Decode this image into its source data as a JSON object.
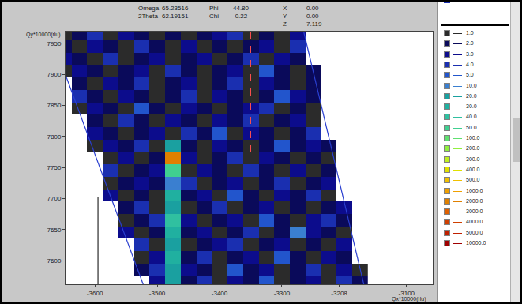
{
  "chart_data": {
    "type": "heatmap",
    "x_label": "Qx*10000(rlu)",
    "y_label": "Qy*10000(rlu)",
    "xlim": [
      -3647,
      -3058
    ],
    "ylim": [
      7562,
      7969
    ],
    "xticks": [
      -3600,
      -3500,
      -3400,
      -3300,
      -3208,
      -3100
    ],
    "yticks": [
      7600,
      7650,
      7700,
      7750,
      7800,
      7850,
      7900,
      7950
    ],
    "grid": false,
    "x": [
      -3650,
      -3625,
      -3600,
      -3575,
      -3550,
      -3525,
      -3500,
      -3475,
      -3450,
      -3425,
      -3400,
      -3375,
      -3350,
      -3325,
      -3300,
      -3275,
      -3250,
      -3225,
      -3200,
      -3175
    ],
    "y": [
      7565,
      7585,
      7605,
      7625,
      7645,
      7665,
      7685,
      7705,
      7725,
      7745,
      7765,
      7785,
      7805,
      7825,
      7845,
      7865,
      7885,
      7905,
      7925,
      7945,
      7965
    ],
    "z": [
      [
        null,
        null,
        null,
        null,
        null,
        null,
        3,
        20,
        2,
        4,
        1,
        3,
        2,
        5,
        1,
        2,
        3,
        1,
        4,
        2
      ],
      [
        null,
        null,
        null,
        null,
        null,
        2,
        4,
        20,
        3,
        2,
        1,
        5,
        2,
        3,
        1,
        2,
        4,
        1,
        3,
        1
      ],
      [
        null,
        null,
        null,
        null,
        null,
        1,
        3,
        30,
        2,
        4,
        1,
        2,
        3,
        1,
        5,
        2,
        1,
        3,
        2,
        null
      ],
      [
        null,
        null,
        null,
        null,
        null,
        4,
        1,
        20,
        1,
        2,
        3,
        4,
        1,
        2,
        3,
        1,
        2,
        1,
        3,
        null
      ],
      [
        null,
        null,
        null,
        null,
        3,
        1,
        2,
        30,
        2,
        3,
        1,
        2,
        4,
        1,
        2,
        10,
        3,
        2,
        1,
        null
      ],
      [
        null,
        null,
        null,
        null,
        1,
        2,
        4,
        40,
        3,
        1,
        2,
        3,
        1,
        5,
        2,
        1,
        3,
        4,
        2,
        null
      ],
      [
        null,
        null,
        null,
        null,
        2,
        4,
        1,
        20,
        1,
        2,
        4,
        1,
        2,
        3,
        1,
        2,
        1,
        2,
        3,
        null
      ],
      [
        null,
        null,
        null,
        3,
        1,
        2,
        1,
        30,
        2,
        3,
        1,
        5,
        2,
        1,
        3,
        2,
        4,
        1,
        null,
        null
      ],
      [
        null,
        null,
        null,
        1,
        2,
        3,
        2,
        10,
        4,
        1,
        2,
        3,
        1,
        2,
        4,
        1,
        2,
        3,
        null,
        null
      ],
      [
        null,
        null,
        null,
        4,
        1,
        2,
        3,
        50,
        1,
        3,
        2,
        1,
        4,
        2,
        1,
        3,
        1,
        2,
        null,
        null
      ],
      [
        null,
        null,
        null,
        1,
        3,
        1,
        2,
        2000,
        3,
        1,
        2,
        4,
        1,
        3,
        2,
        1,
        2,
        1,
        null,
        null
      ],
      [
        null,
        null,
        1,
        3,
        2,
        4,
        1,
        20,
        2,
        1,
        3,
        2,
        1,
        2,
        5,
        2,
        3,
        2,
        null,
        null
      ],
      [
        null,
        null,
        3,
        2,
        1,
        2,
        3,
        1,
        4,
        2,
        5,
        1,
        3,
        2,
        1,
        2,
        4,
        null,
        null,
        null
      ],
      [
        null,
        null,
        2,
        1,
        4,
        2,
        1,
        3,
        2,
        1,
        3,
        2,
        4,
        1,
        2,
        3,
        1,
        null,
        null,
        null
      ],
      [
        null,
        1,
        3,
        2,
        1,
        5,
        2,
        1,
        3,
        2,
        1,
        2,
        3,
        4,
        1,
        2,
        1,
        null,
        null,
        null
      ],
      [
        null,
        4,
        2,
        1,
        3,
        2,
        1,
        2,
        4,
        1,
        3,
        2,
        1,
        2,
        5,
        3,
        2,
        null,
        null,
        null
      ],
      [
        null,
        2,
        1,
        3,
        2,
        4,
        1,
        2,
        3,
        1,
        2,
        4,
        1,
        3,
        2,
        1,
        2,
        null,
        null,
        null
      ],
      [
        1,
        3,
        2,
        1,
        2,
        3,
        1,
        4,
        2,
        1,
        2,
        3,
        1,
        5,
        2,
        1,
        2,
        null,
        null,
        null
      ],
      [
        3,
        2,
        1,
        4,
        1,
        2,
        3,
        1,
        2,
        3,
        1,
        2,
        4,
        1,
        3,
        2,
        null,
        null,
        null,
        null
      ],
      [
        2,
        1,
        3,
        2,
        1,
        4,
        2,
        1,
        3,
        1,
        2,
        1,
        2,
        3,
        1,
        4,
        null,
        null,
        null,
        null
      ],
      [
        1,
        2,
        4,
        1,
        3,
        2,
        1,
        2,
        1,
        2,
        3,
        4,
        1,
        2,
        1,
        3,
        null,
        null,
        null,
        null
      ]
    ],
    "levels": [
      {
        "value": 1,
        "label": "1.0",
        "color": "#2b2b2b"
      },
      {
        "value": 2,
        "label": "2.0",
        "color": "#0a0a5a"
      },
      {
        "value": 3,
        "label": "3.0",
        "color": "#0c0c8c"
      },
      {
        "value": 4,
        "label": "4.0",
        "color": "#1a2fb0"
      },
      {
        "value": 5,
        "label": "5.0",
        "color": "#2255cc"
      },
      {
        "value": 10,
        "label": "10.0",
        "color": "#3a7fd0"
      },
      {
        "value": 20,
        "label": "20.0",
        "color": "#1aa0a0"
      },
      {
        "value": 30,
        "label": "30.0",
        "color": "#20b0a0"
      },
      {
        "value": 40,
        "label": "40.0",
        "color": "#30c0a0"
      },
      {
        "value": 50,
        "label": "50.0",
        "color": "#40d090"
      },
      {
        "value": 100,
        "label": "100.0",
        "color": "#60e070"
      },
      {
        "value": 200,
        "label": "200.0",
        "color": "#90f040"
      },
      {
        "value": 300,
        "label": "300.0",
        "color": "#c0f020"
      },
      {
        "value": 400,
        "label": "400.0",
        "color": "#e0e000"
      },
      {
        "value": 500,
        "label": "500.0",
        "color": "#f0c000"
      },
      {
        "value": 1000,
        "label": "1000.0",
        "color": "#f0a000"
      },
      {
        "value": 2000,
        "label": "2000.0",
        "color": "#e08000"
      },
      {
        "value": 3000,
        "label": "3000.0",
        "color": "#e06000"
      },
      {
        "value": 4000,
        "label": "4000.0",
        "color": "#d04000"
      },
      {
        "value": 5000,
        "label": "5000.0",
        "color": "#c02000"
      },
      {
        "value": 10000,
        "label": "10000.0",
        "color": "#a00000"
      }
    ],
    "scan_edges": {
      "color": "#2a3fd0",
      "lines": [
        {
          "x": [
            -3647,
            -3520
          ],
          "y": [
            7899,
            7555
          ]
        },
        {
          "x": [
            -3265,
            -3167
          ],
          "y": [
            7969,
            7555
          ]
        }
      ]
    },
    "markers": [
      {
        "x": [
          -3350,
          -3350
        ],
        "y": [
          7969,
          7772
        ],
        "color": "#ff5050",
        "line_style": "dashed"
      },
      {
        "x": [
          -3595,
          -3595
        ],
        "y": [
          7562,
          7702
        ],
        "color": "#000000",
        "line_style": "solid"
      }
    ]
  },
  "header": [
    [
      {
        "name": "Omega",
        "value": "65.23516"
      },
      {
        "name": "2Theta",
        "value": "62.19151"
      }
    ],
    [
      {
        "name": "Phi",
        "value": "44.80"
      },
      {
        "name": "Chi",
        "value": "-0.22"
      }
    ],
    [
      {
        "name": "X",
        "value": "0.00"
      },
      {
        "name": "Y",
        "value": "0.00"
      },
      {
        "name": "Z",
        "value": "7.119"
      }
    ]
  ]
}
